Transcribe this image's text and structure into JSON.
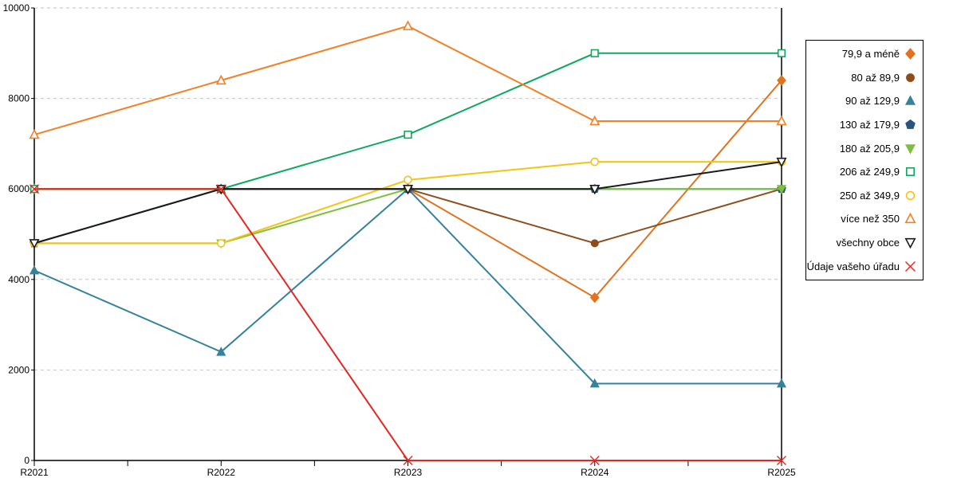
{
  "chart_data": {
    "type": "line",
    "title": "",
    "xlabel": "",
    "ylabel": "",
    "categories": [
      "R2021",
      "R2022",
      "R2023",
      "R2024",
      "R2025"
    ],
    "ylim": [
      0,
      10000
    ],
    "y_ticks": [
      0,
      2000,
      4000,
      6000,
      8000,
      10000
    ],
    "y_tick_labels": [
      "0",
      "2000",
      "4000",
      "6000",
      "8000",
      "10000"
    ],
    "grid": "horizontal-dashed",
    "grid_color": "#c6c6c6",
    "axis_color": "#000000",
    "legend_position": "right-outside-boxed",
    "series": [
      {
        "name": "79,9 a méně",
        "color": "#E2731E",
        "marker": "diamond",
        "fill": true,
        "values": [
          6000,
          6000,
          6000,
          3600,
          8400
        ]
      },
      {
        "name": "80 až 89,9",
        "color": "#8F4D1B",
        "marker": "circle",
        "fill": true,
        "values": [
          6000,
          6000,
          6000,
          4800,
          6000
        ]
      },
      {
        "name": "90 až 129,9",
        "color": "#35839B",
        "marker": "triangle-up",
        "fill": true,
        "values": [
          4200,
          2400,
          6000,
          1700,
          1700
        ]
      },
      {
        "name": "130 až 179,9",
        "color": "#27567F",
        "marker": "pentagon",
        "fill": true,
        "values": [
          4800,
          6000,
          6000,
          6000,
          6000
        ]
      },
      {
        "name": "180 až 205,9",
        "color": "#7FBF3F",
        "marker": "triangle-down",
        "fill": true,
        "values": [
          4800,
          4800,
          6000,
          6000,
          6000
        ]
      },
      {
        "name": "206 až 249,9",
        "color": "#0DA95F",
        "marker": "square",
        "fill": false,
        "values": [
          6000,
          6000,
          7200,
          9000,
          9000
        ]
      },
      {
        "name": "250 až 349,9",
        "color": "#F5C413",
        "marker": "circle",
        "fill": false,
        "values": [
          4800,
          4800,
          6200,
          6600,
          6600
        ]
      },
      {
        "name": "více než 350",
        "color": "#F48025",
        "marker": "triangle-up",
        "fill": false,
        "values": [
          7200,
          8400,
          9600,
          7500,
          7500
        ]
      },
      {
        "name": "všechny obce",
        "color": "#1A1A1A",
        "marker": "triangle-down",
        "fill": false,
        "values": [
          4800,
          6000,
          6000,
          6000,
          6600
        ]
      },
      {
        "name": "Údaje vašeho úřadu",
        "color": "#E52620",
        "marker": "x",
        "fill": false,
        "values": [
          6000,
          6000,
          0,
          0,
          0
        ]
      }
    ]
  }
}
